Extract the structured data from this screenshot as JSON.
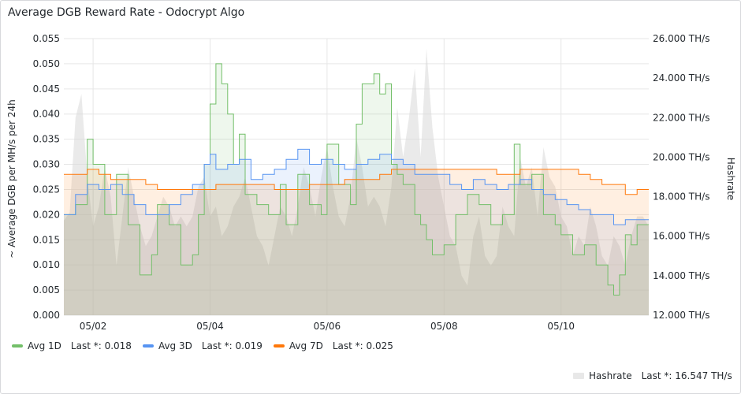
{
  "panel": {
    "title": "Average DGB Reward Rate - Odocrypt Algo"
  },
  "legend": [
    {
      "name": "Avg 1D",
      "last_text": "Last *: 0.018",
      "color": "#73bf69"
    },
    {
      "name": "Avg 3D",
      "last_text": "Last *: 0.019",
      "color": "#5794f2"
    },
    {
      "name": "Avg 7D",
      "last_text": "Last *: 0.025",
      "color": "#ff780a"
    }
  ],
  "legend_hashrate": {
    "name": "Hashrate",
    "last_text": "Last *: 16.547 TH/s",
    "color": "#d8d8d8"
  },
  "chart_data": {
    "type": "line",
    "title": "Average DGB Reward Rate - Odocrypt Algo",
    "ylabel": "~ Average DGB per MH/s per 24h",
    "y2label": "Hashrate",
    "ylim": [
      0,
      0.055
    ],
    "y2lim": [
      12.0,
      26.0
    ],
    "y2_unit": "TH/s",
    "x_range_days": [
      1.5,
      11.5
    ],
    "x_ticks": [
      {
        "day": 2,
        "label": "05/02"
      },
      {
        "day": 4,
        "label": "05/04"
      },
      {
        "day": 6,
        "label": "05/06"
      },
      {
        "day": 8,
        "label": "05/08"
      },
      {
        "day": 10,
        "label": "05/10"
      }
    ],
    "y_ticks": [
      "0.000",
      "0.005",
      "0.010",
      "0.015",
      "0.020",
      "0.025",
      "0.030",
      "0.035",
      "0.040",
      "0.045",
      "0.050",
      "0.055"
    ],
    "y2_ticks": [
      "12.000 TH/s",
      "14.000 TH/s",
      "16.000 TH/s",
      "18.000 TH/s",
      "20.000 TH/s",
      "22.000 TH/s",
      "24.000 TH/s",
      "26.000 TH/s"
    ],
    "grid": true,
    "series": [
      {
        "name": "Avg 1D",
        "axis": "left",
        "color": "#73bf69",
        "x": [
          1.5,
          1.7,
          1.9,
          2.0,
          2.2,
          2.4,
          2.6,
          2.8,
          3.0,
          3.1,
          3.3,
          3.5,
          3.7,
          3.8,
          3.9,
          4.0,
          4.1,
          4.2,
          4.3,
          4.4,
          4.5,
          4.6,
          4.8,
          5.0,
          5.2,
          5.3,
          5.5,
          5.7,
          5.9,
          6.0,
          6.2,
          6.4,
          6.5,
          6.6,
          6.8,
          6.9,
          7.0,
          7.1,
          7.2,
          7.3,
          7.5,
          7.6,
          7.7,
          7.8,
          8.0,
          8.2,
          8.4,
          8.6,
          8.8,
          9.0,
          9.2,
          9.3,
          9.5,
          9.7,
          9.9,
          10.0,
          10.2,
          10.4,
          10.6,
          10.8,
          10.9,
          11.0,
          11.1,
          11.2,
          11.3,
          11.5
        ],
        "values": [
          0.02,
          0.022,
          0.035,
          0.03,
          0.02,
          0.028,
          0.018,
          0.008,
          0.012,
          0.022,
          0.018,
          0.01,
          0.012,
          0.02,
          0.03,
          0.042,
          0.05,
          0.046,
          0.04,
          0.03,
          0.036,
          0.024,
          0.022,
          0.02,
          0.026,
          0.018,
          0.028,
          0.022,
          0.02,
          0.034,
          0.026,
          0.022,
          0.038,
          0.046,
          0.048,
          0.044,
          0.046,
          0.03,
          0.028,
          0.026,
          0.02,
          0.018,
          0.015,
          0.012,
          0.014,
          0.02,
          0.024,
          0.022,
          0.018,
          0.02,
          0.034,
          0.026,
          0.028,
          0.02,
          0.018,
          0.016,
          0.012,
          0.014,
          0.01,
          0.006,
          0.004,
          0.008,
          0.016,
          0.014,
          0.018,
          0.018
        ]
      },
      {
        "name": "Avg 3D",
        "axis": "left",
        "color": "#5794f2",
        "x": [
          1.5,
          1.7,
          1.9,
          2.1,
          2.3,
          2.5,
          2.7,
          2.9,
          3.1,
          3.3,
          3.5,
          3.7,
          3.9,
          4.0,
          4.1,
          4.3,
          4.5,
          4.7,
          4.9,
          5.1,
          5.3,
          5.5,
          5.7,
          5.9,
          6.1,
          6.3,
          6.5,
          6.7,
          6.9,
          7.1,
          7.3,
          7.5,
          7.7,
          7.9,
          8.1,
          8.3,
          8.5,
          8.7,
          8.9,
          9.1,
          9.3,
          9.5,
          9.7,
          9.9,
          10.1,
          10.3,
          10.5,
          10.7,
          10.9,
          11.1,
          11.3,
          11.5
        ],
        "values": [
          0.02,
          0.024,
          0.026,
          0.025,
          0.026,
          0.024,
          0.022,
          0.02,
          0.02,
          0.022,
          0.024,
          0.026,
          0.03,
          0.032,
          0.029,
          0.03,
          0.031,
          0.027,
          0.028,
          0.029,
          0.031,
          0.033,
          0.03,
          0.031,
          0.03,
          0.029,
          0.03,
          0.031,
          0.032,
          0.031,
          0.03,
          0.028,
          0.028,
          0.028,
          0.026,
          0.025,
          0.027,
          0.026,
          0.025,
          0.026,
          0.027,
          0.025,
          0.024,
          0.023,
          0.022,
          0.021,
          0.02,
          0.02,
          0.018,
          0.019,
          0.019,
          0.019
        ]
      },
      {
        "name": "Avg 7D",
        "axis": "left",
        "color": "#ff780a",
        "x": [
          1.5,
          1.7,
          1.9,
          2.1,
          2.3,
          2.5,
          2.7,
          2.9,
          3.1,
          3.3,
          3.5,
          3.7,
          3.9,
          4.1,
          4.3,
          4.5,
          4.7,
          4.9,
          5.1,
          5.3,
          5.5,
          5.7,
          5.9,
          6.1,
          6.3,
          6.5,
          6.7,
          6.9,
          7.1,
          7.3,
          7.5,
          7.7,
          7.9,
          8.1,
          8.3,
          8.5,
          8.7,
          8.9,
          9.1,
          9.3,
          9.5,
          9.7,
          9.9,
          10.1,
          10.3,
          10.5,
          10.7,
          10.9,
          11.1,
          11.3,
          11.5
        ],
        "values": [
          0.028,
          0.028,
          0.029,
          0.028,
          0.027,
          0.027,
          0.027,
          0.026,
          0.025,
          0.025,
          0.025,
          0.025,
          0.025,
          0.026,
          0.026,
          0.026,
          0.026,
          0.026,
          0.025,
          0.025,
          0.025,
          0.026,
          0.026,
          0.026,
          0.027,
          0.027,
          0.027,
          0.028,
          0.029,
          0.029,
          0.029,
          0.029,
          0.029,
          0.029,
          0.029,
          0.029,
          0.029,
          0.028,
          0.028,
          0.029,
          0.029,
          0.029,
          0.029,
          0.029,
          0.028,
          0.027,
          0.026,
          0.026,
          0.024,
          0.025,
          0.025
        ]
      },
      {
        "name": "Hashrate",
        "axis": "right",
        "color": "#d8d8d8",
        "x": [
          1.5,
          1.6,
          1.7,
          1.8,
          1.9,
          2.0,
          2.1,
          2.2,
          2.3,
          2.4,
          2.5,
          2.6,
          2.7,
          2.8,
          2.9,
          3.0,
          3.1,
          3.2,
          3.3,
          3.4,
          3.5,
          3.6,
          3.7,
          3.8,
          3.9,
          4.0,
          4.1,
          4.2,
          4.3,
          4.4,
          4.5,
          4.6,
          4.7,
          4.8,
          4.9,
          5.0,
          5.1,
          5.2,
          5.3,
          5.4,
          5.5,
          5.6,
          5.7,
          5.8,
          5.9,
          6.0,
          6.1,
          6.2,
          6.3,
          6.4,
          6.5,
          6.6,
          6.7,
          6.8,
          6.9,
          7.0,
          7.1,
          7.2,
          7.3,
          7.4,
          7.5,
          7.6,
          7.7,
          7.8,
          7.9,
          8.0,
          8.1,
          8.2,
          8.3,
          8.4,
          8.5,
          8.6,
          8.7,
          8.8,
          8.9,
          9.0,
          9.1,
          9.2,
          9.3,
          9.4,
          9.5,
          9.6,
          9.7,
          9.8,
          9.9,
          10.0,
          10.1,
          10.2,
          10.3,
          10.4,
          10.5,
          10.6,
          10.7,
          10.8,
          10.9,
          11.0,
          11.1,
          11.2,
          11.3,
          11.4,
          11.5
        ],
        "values": [
          16.8,
          17.2,
          22.0,
          23.2,
          19.0,
          16.5,
          17.5,
          19.5,
          18.0,
          14.5,
          17.0,
          19.5,
          18.0,
          16.5,
          15.5,
          16.0,
          17.0,
          18.0,
          17.5,
          16.5,
          17.0,
          16.5,
          17.0,
          18.5,
          19.0,
          17.0,
          17.5,
          16.0,
          16.5,
          17.5,
          18.0,
          19.0,
          17.5,
          16.0,
          15.5,
          14.5,
          16.0,
          17.5,
          17.0,
          16.0,
          17.5,
          19.5,
          18.5,
          17.0,
          19.0,
          20.5,
          18.5,
          17.0,
          16.5,
          18.0,
          21.0,
          19.5,
          17.5,
          18.0,
          17.5,
          16.5,
          18.5,
          22.5,
          20.0,
          22.0,
          24.5,
          20.0,
          25.5,
          21.5,
          19.0,
          17.5,
          16.0,
          15.5,
          14.0,
          13.5,
          16.0,
          17.0,
          15.0,
          14.5,
          15.0,
          17.5,
          16.5,
          16.0,
          20.0,
          18.5,
          19.5,
          17.0,
          20.5,
          19.0,
          18.5,
          17.0,
          16.5,
          15.0,
          16.0,
          15.5,
          17.5,
          16.5,
          15.0,
          14.5,
          16.0,
          15.5,
          14.5,
          16.0,
          17.0,
          17.0,
          16.5
        ]
      }
    ]
  }
}
